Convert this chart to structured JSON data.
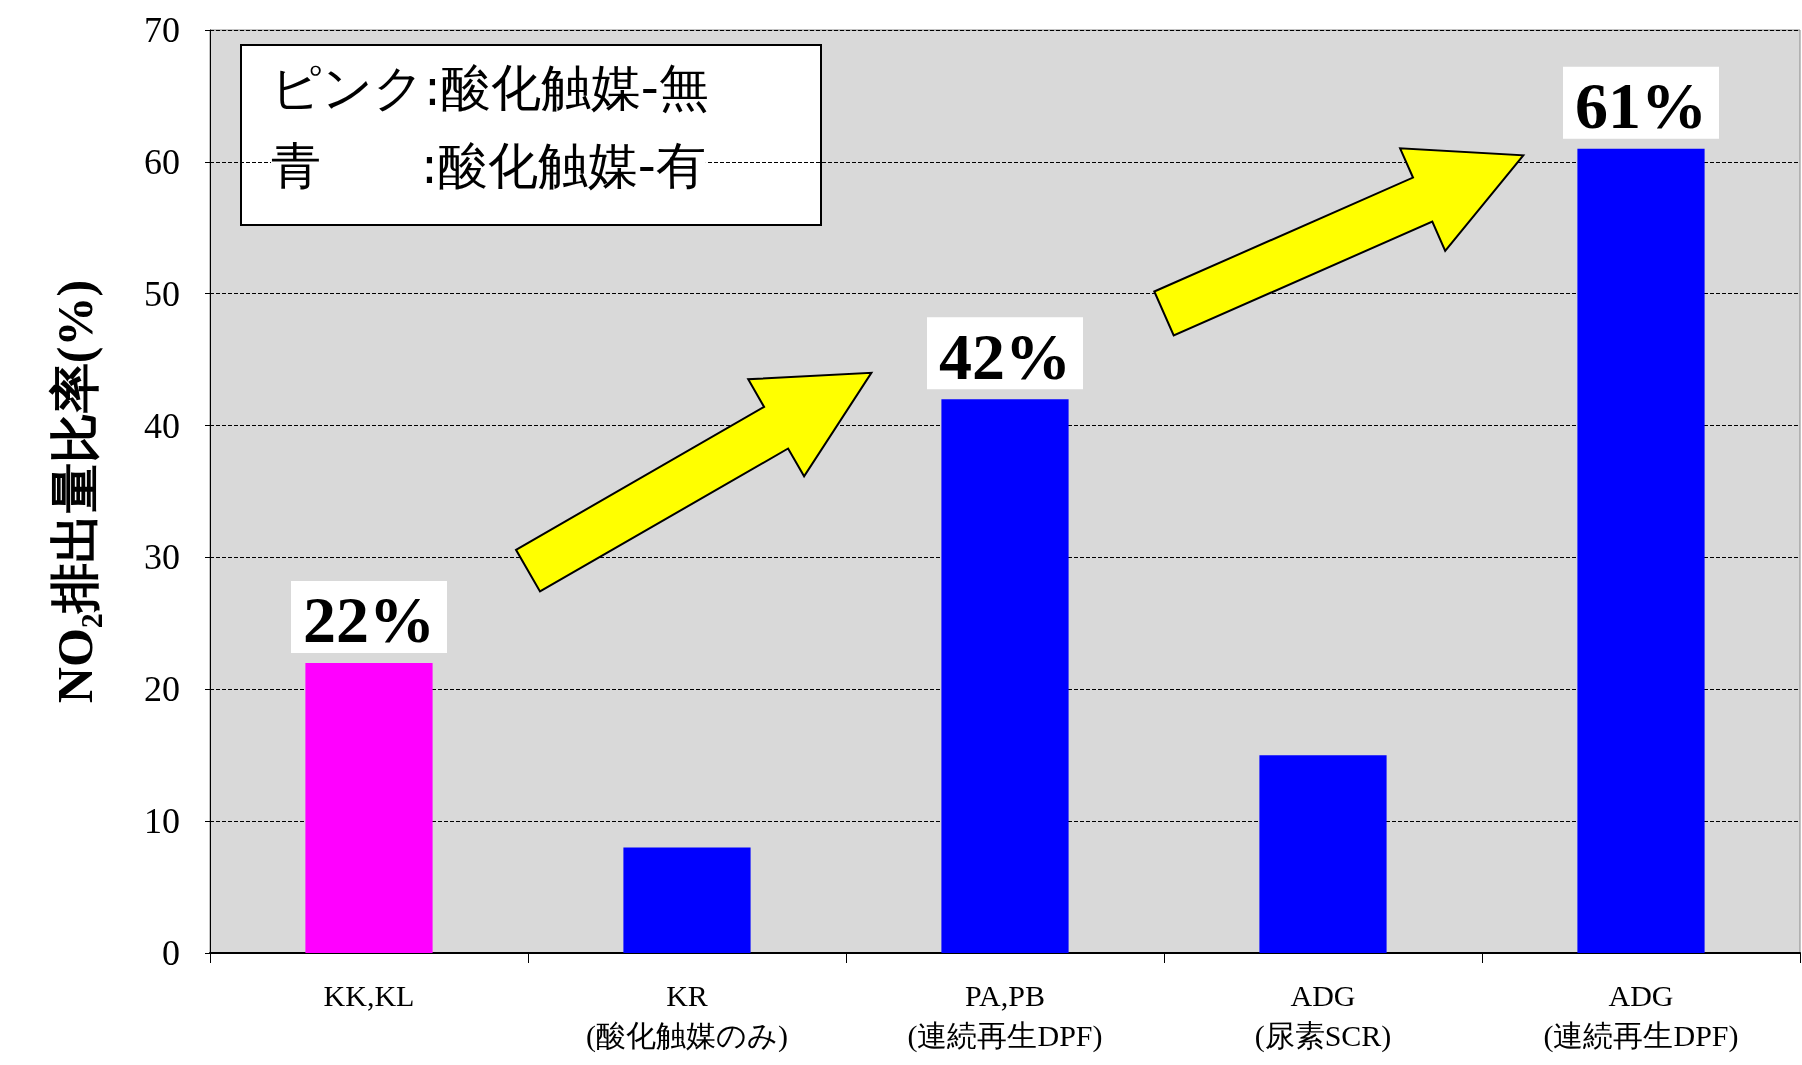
{
  "chart_data": {
    "type": "bar",
    "categories": [
      "KK,KL",
      "KR\n(酸化触媒のみ)",
      "PA,PB\n(連続再生DPF)",
      "ADG\n(尿素SCR)",
      "ADG\n(連続再生DPF)"
    ],
    "values": [
      22,
      8,
      42,
      15,
      61
    ],
    "colors": [
      "#ff00ff",
      "#0000ff",
      "#0000ff",
      "#0000ff",
      "#0000ff"
    ],
    "value_labels": [
      "22%",
      null,
      "42%",
      null,
      "61%"
    ],
    "ylabel": "NO₂排出量比率(%)",
    "ylim": [
      0,
      70
    ],
    "yticks": [
      0,
      10,
      20,
      30,
      40,
      50,
      60,
      70
    ],
    "grid": "y",
    "annotations": [
      "ピンク:酸化触媒-無",
      "青　　:酸化触媒-有"
    ]
  }
}
